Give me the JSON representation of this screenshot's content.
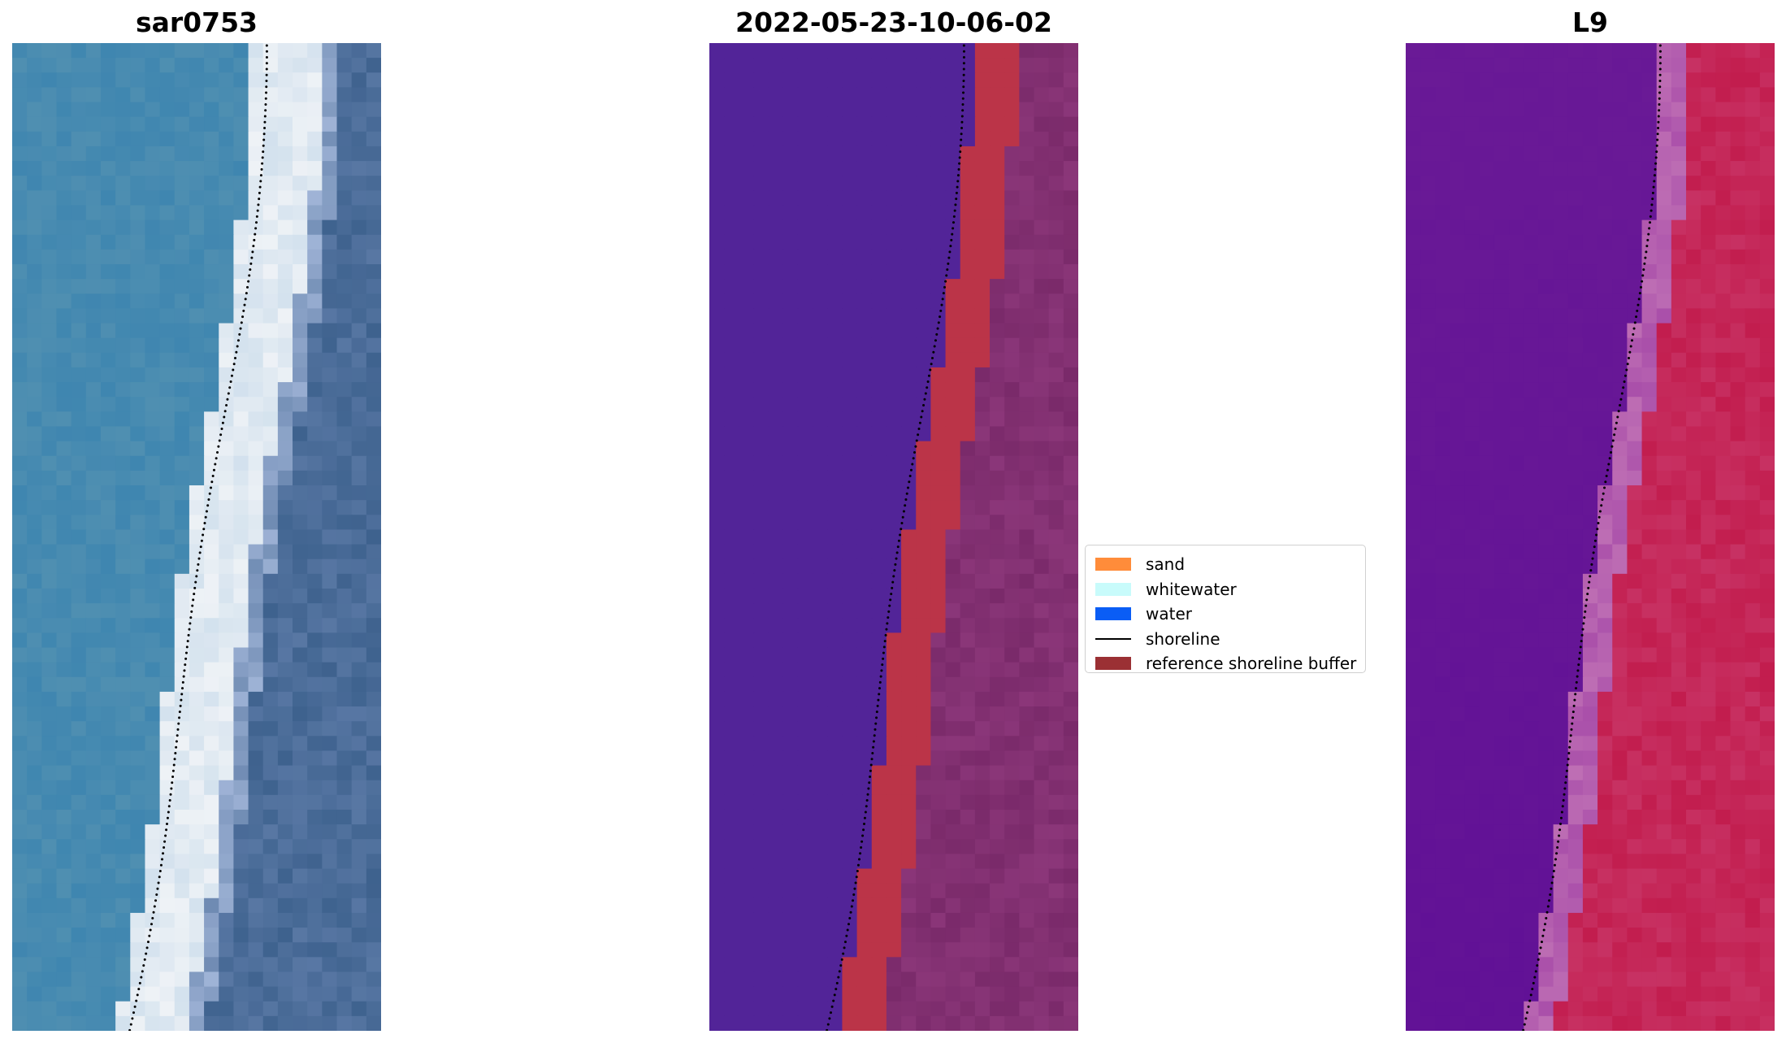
{
  "panels": {
    "rgb": {
      "title": "sar0753"
    },
    "classified": {
      "title": "2022-05-23-10-06-02"
    },
    "index": {
      "title": "L9"
    }
  },
  "legend": {
    "items": [
      {
        "label": "sand",
        "color": "#ff8c3a",
        "kind": "patch"
      },
      {
        "label": "whitewater",
        "color": "#c8fbfb",
        "kind": "patch"
      },
      {
        "label": "water",
        "color": "#0a5df5",
        "kind": "patch"
      },
      {
        "label": "shoreline",
        "color": "#000000",
        "kind": "line"
      },
      {
        "label": "reference shoreline buffer",
        "color": "#9b3034",
        "kind": "patch"
      }
    ]
  },
  "colors": {
    "ocean": "#3f86b0",
    "surf": "#eef2f6",
    "land": "#3e628e",
    "classified_water": "#522498",
    "classified_buffer": "#bb3448",
    "classified_land": "#7a2a6a",
    "index_water": "#6a1a96",
    "index_land": "#c21d4e",
    "shoreline_dots": "#000000"
  }
}
